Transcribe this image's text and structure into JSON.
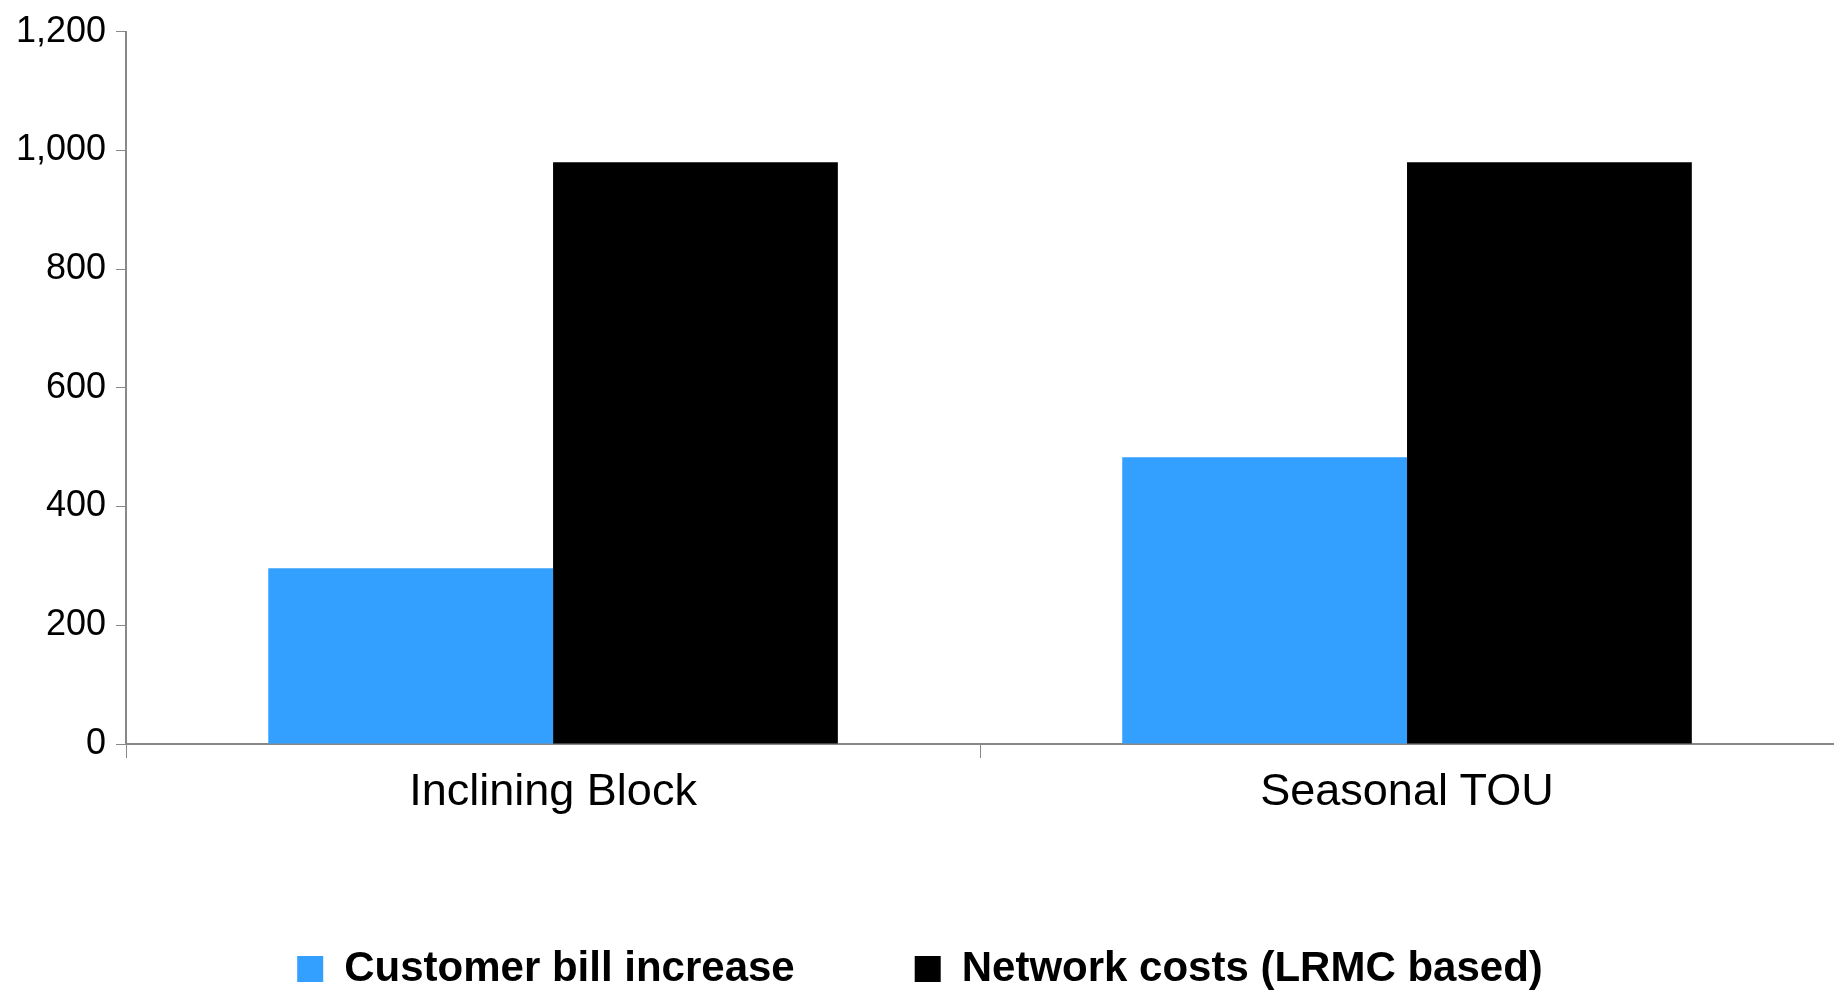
{
  "chart_data": {
    "type": "bar",
    "categories": [
      "Inclining Block",
      "Seasonal TOU"
    ],
    "series": [
      {
        "name": "Customer bill increase",
        "color": "#339ffe",
        "values": [
          296,
          483
        ]
      },
      {
        "name": "Network costs (LRMC based)",
        "color": "#000000",
        "values": [
          980,
          980
        ]
      }
    ],
    "ylim": [
      0,
      1200
    ],
    "yticks": [
      0,
      {
        "value": 200,
        "label": "200"
      },
      {
        "value": 400,
        "label": "400"
      },
      {
        "value": 600,
        "label": "600"
      },
      {
        "value": 800,
        "label": "800"
      },
      {
        "value": 1000,
        "label": "1,000"
      },
      {
        "value": 1200,
        "label": "1,200"
      }
    ],
    "grid": false,
    "legend": "bottom"
  }
}
